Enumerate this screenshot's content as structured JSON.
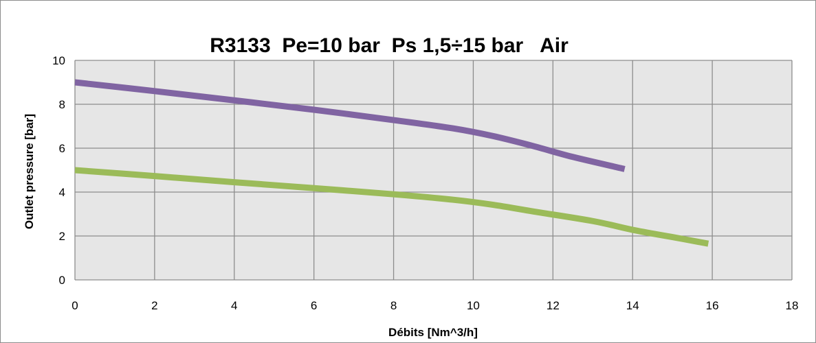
{
  "chart_data": {
    "type": "line",
    "title": "R3133  Pe=10 bar  Ps 1,5÷15 bar   Air",
    "xlabel": "Débits [Nm^3/h]",
    "ylabel": "Outlet pressure [bar]",
    "xlim": [
      0,
      18
    ],
    "ylim": [
      0,
      10
    ],
    "xticks": [
      "0",
      "2",
      "4",
      "6",
      "8",
      "10",
      "12",
      "14",
      "16",
      "18"
    ],
    "yticks": [
      "0",
      "2",
      "4",
      "6",
      "8",
      "10"
    ],
    "grid": true,
    "legend": "none",
    "plot_background": "#e6e6e6",
    "grid_color": "#8c8c8c",
    "series": [
      {
        "color": "#8064a2",
        "points": [
          [
            0,
            9.0
          ],
          [
            2,
            8.6
          ],
          [
            4,
            8.18
          ],
          [
            6,
            7.75
          ],
          [
            8,
            7.28
          ],
          [
            9.5,
            6.9
          ],
          [
            10.5,
            6.55
          ],
          [
            11.5,
            6.1
          ],
          [
            12.5,
            5.6
          ],
          [
            13.8,
            5.05
          ]
        ]
      },
      {
        "color": "#9bbb59",
        "points": [
          [
            0,
            5.0
          ],
          [
            2,
            4.73
          ],
          [
            4,
            4.45
          ],
          [
            6,
            4.18
          ],
          [
            8,
            3.9
          ],
          [
            9.5,
            3.65
          ],
          [
            10.5,
            3.42
          ],
          [
            11.5,
            3.12
          ],
          [
            13,
            2.68
          ],
          [
            14,
            2.28
          ],
          [
            15,
            1.95
          ],
          [
            15.9,
            1.65
          ]
        ]
      }
    ]
  }
}
